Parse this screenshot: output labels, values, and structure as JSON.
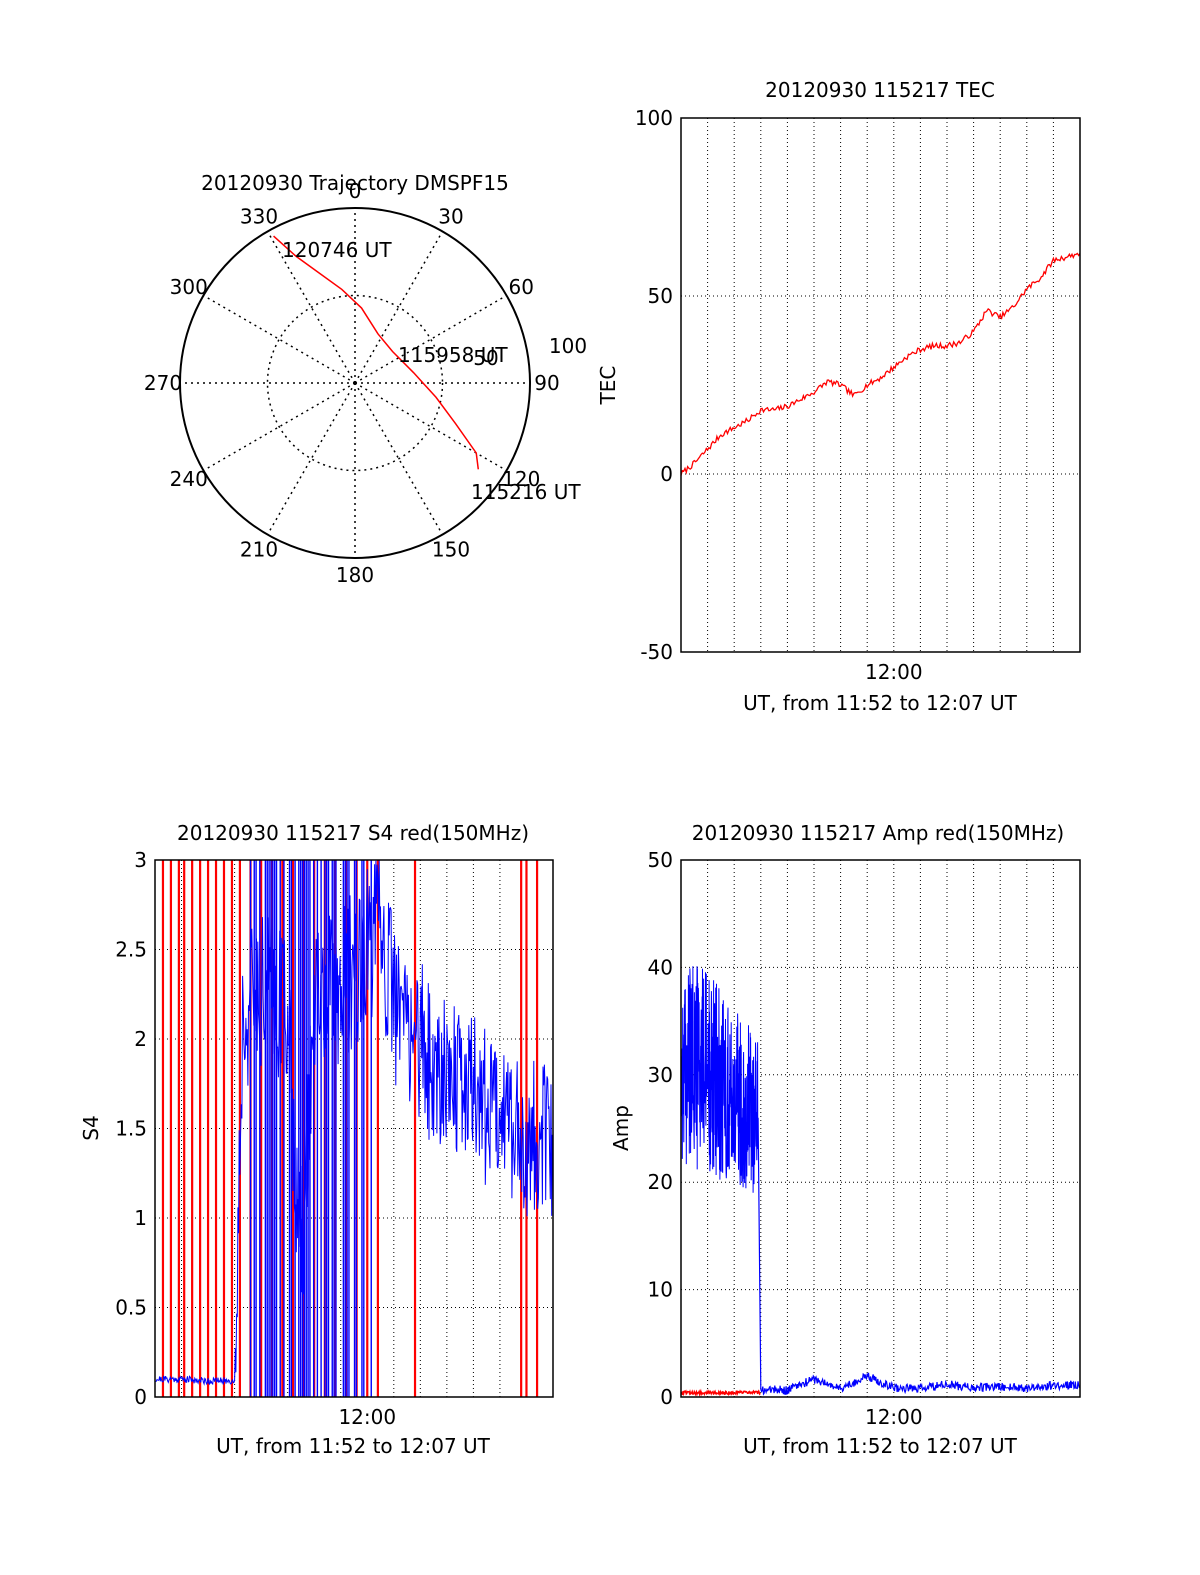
{
  "chart_data": [
    {
      "type": "polar",
      "title": "20120930 Trajectory DMSPF15",
      "angle_labels": [
        "0",
        "30",
        "60",
        "90",
        "120",
        "150",
        "180",
        "210",
        "240",
        "270",
        "300",
        "330"
      ],
      "angles": [
        0,
        30,
        60,
        90,
        120,
        150,
        180,
        210,
        240,
        270,
        300,
        330
      ],
      "radial_labels": [
        "50",
        "100"
      ],
      "rmax": 100,
      "grid": true,
      "series": [
        {
          "color": "#ff0000",
          "points": [
            {
              "az": 331,
              "r": 96
            },
            {
              "az": 335,
              "r": 80
            },
            {
              "az": 342,
              "r": 66
            },
            {
              "az": 352,
              "r": 54
            },
            {
              "az": 5,
              "r": 43
            },
            {
              "az": 25,
              "r": 31
            },
            {
              "az": 50,
              "r": 28
            },
            {
              "az": 80,
              "r": 34
            },
            {
              "az": 100,
              "r": 47
            },
            {
              "az": 112,
              "r": 62
            },
            {
              "az": 120,
              "r": 80
            },
            {
              "az": 125,
              "r": 86
            }
          ]
        }
      ],
      "annotations": [
        "120746 UT",
        "115958 UT",
        "115216 UT"
      ]
    },
    {
      "type": "line",
      "title": "20120930 115217 TEC",
      "xlabel": "UT, from 11:52 to 12:07 UT",
      "ylabel": "TEC",
      "x_tick_labels": [
        "12:00"
      ],
      "y_tick_labels": [
        "100",
        "50",
        "0",
        "-50"
      ],
      "ylim": [
        -50,
        100
      ],
      "grid": true,
      "series": [
        {
          "color": "#ff0000",
          "x_minutes": [
            0,
            0.5,
            1,
            1.5,
            2,
            2.5,
            3,
            3.5,
            4,
            4.5,
            5,
            5.5,
            6,
            6.5,
            7,
            7.5,
            8,
            8.5,
            9,
            9.5,
            10,
            10.5,
            11,
            11.5,
            12,
            12.5,
            13,
            13.5,
            14,
            14.5,
            15
          ],
          "values": [
            0,
            3,
            7,
            11,
            13,
            15,
            18,
            18,
            19,
            21,
            23,
            26,
            25,
            22,
            25,
            27,
            30,
            33,
            35,
            36,
            36,
            37,
            40,
            46,
            44,
            47,
            52,
            55,
            60,
            61,
            62
          ]
        }
      ]
    },
    {
      "type": "line",
      "title": "20120930 115217 S4 red(150MHz)",
      "xlabel": "UT, from 11:52 to 12:07 UT",
      "ylabel": "S4",
      "x_tick_labels": [
        "12:00"
      ],
      "y_tick_labels": [
        "3",
        "2.5",
        "2",
        "1.5",
        "1",
        "0.5",
        "0"
      ],
      "ylim": [
        0,
        3
      ],
      "grid": true,
      "series": [
        {
          "color": "#0000ff",
          "x_minutes": [
            0,
            1,
            2,
            3,
            3.3,
            4,
            5,
            5.5,
            6,
            7,
            8,
            8.5,
            9,
            9.5,
            10,
            10.5,
            11,
            11.5,
            12,
            12.5,
            13,
            13.5,
            14,
            14.5,
            15
          ],
          "values": [
            0.1,
            0.1,
            0.09,
            0.09,
            2.1,
            2.3,
            2.2,
            0.7,
            2.2,
            2.3,
            2.5,
            2.6,
            2.2,
            2.1,
            2.0,
            1.8,
            1.9,
            1.7,
            1.8,
            1.6,
            1.7,
            1.5,
            1.4,
            1.5,
            1.3
          ]
        },
        {
          "color": "#ff0000",
          "spikes_x_minutes": [
            0.3,
            0.6,
            0.9,
            1.1,
            1.4,
            1.7,
            2.0,
            2.3,
            2.6,
            2.9,
            3.2,
            3.6,
            4.0,
            4.4,
            4.8,
            5.2,
            5.6,
            6.0,
            6.4,
            6.8,
            7.2,
            7.6,
            8.0,
            8.4,
            9.8,
            13.8,
            14.0,
            14.4
          ],
          "spike_max": 3
        }
      ]
    },
    {
      "type": "line",
      "title": "20120930 115217 Amp red(150MHz)",
      "xlabel": "UT, from 11:52 to 12:07 UT",
      "ylabel": "Amp",
      "x_tick_labels": [
        "12:00"
      ],
      "y_tick_labels": [
        "50",
        "40",
        "30",
        "20",
        "10",
        "0"
      ],
      "ylim": [
        0,
        50
      ],
      "grid": true,
      "series": [
        {
          "color": "#0000ff",
          "x_minutes": [
            0,
            0.5,
            1,
            1.5,
            2,
            2.5,
            2.9,
            3.0,
            4,
            5,
            6,
            7,
            8,
            9,
            10,
            11,
            12,
            13,
            14,
            15
          ],
          "values": [
            30,
            31,
            30,
            29,
            28,
            27,
            26,
            0.5,
            0.5,
            1.5,
            0.6,
            1.8,
            0.7,
            0.6,
            1.0,
            0.7,
            0.8,
            0.7,
            0.9,
            1.0
          ],
          "upper_envelope": [
            38,
            41,
            40,
            38,
            36,
            35,
            34
          ],
          "lower_envelope": [
            22,
            21,
            21,
            20,
            20,
            19,
            19
          ]
        },
        {
          "color": "#ff0000",
          "x_minutes": [
            0,
            3.0
          ],
          "values": [
            0.4,
            0.4
          ]
        }
      ]
    }
  ]
}
